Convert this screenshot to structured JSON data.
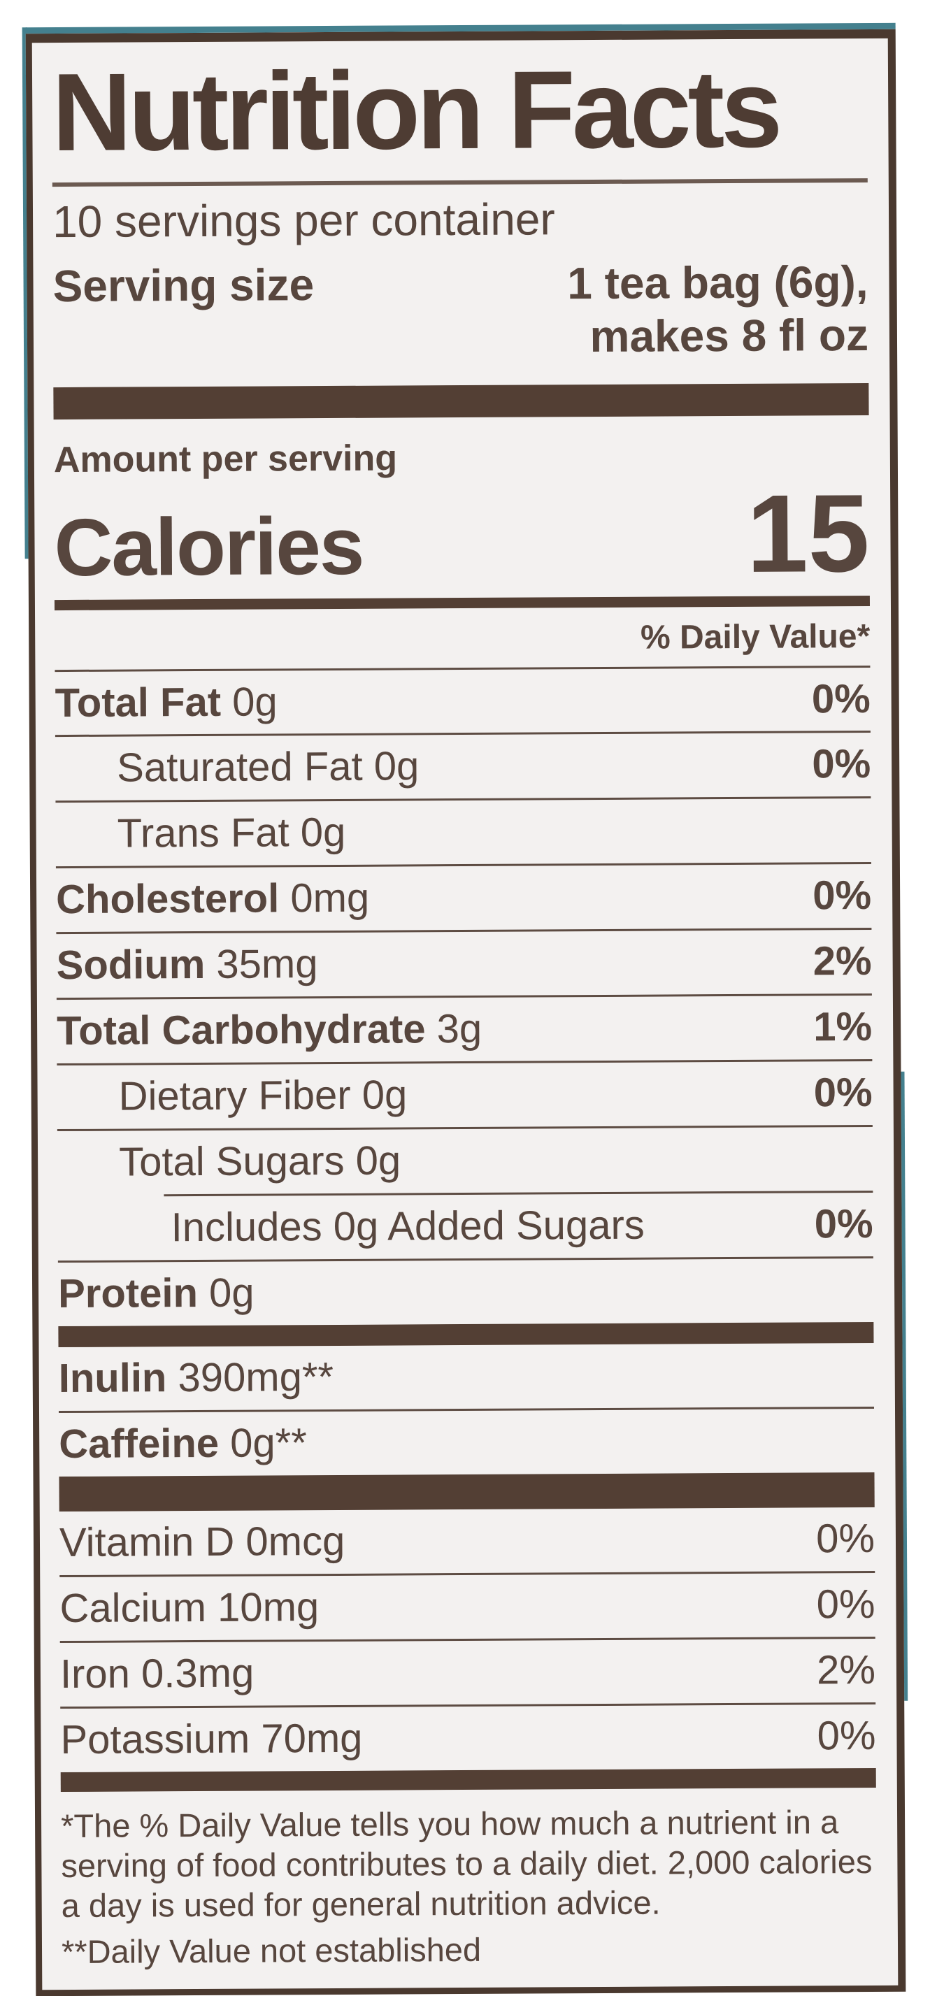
{
  "label": {
    "title": "Nutrition Facts",
    "servings_per_container": "10 servings per container",
    "serving_size_label": "Serving size",
    "serving_size_line1": "1 tea bag (6g),",
    "serving_size_line2": "makes 8 fl oz",
    "amount_per_serving": "Amount per serving",
    "calories_label": "Calories",
    "calories_value": "15",
    "daily_value_header": "% Daily Value*",
    "rows": [
      {
        "bold": "Total Fat",
        "rest": " 0g",
        "pct": "0%"
      },
      {
        "bold": "",
        "rest": "Saturated Fat 0g",
        "pct": "0%"
      },
      {
        "bold": "",
        "rest": "Trans Fat 0g",
        "pct": ""
      },
      {
        "bold": "Cholesterol",
        "rest": " 0mg",
        "pct": "0%"
      },
      {
        "bold": "Sodium",
        "rest": " 35mg",
        "pct": "2%"
      },
      {
        "bold": "Total Carbohydrate",
        "rest": " 3g",
        "pct": "1%"
      },
      {
        "bold": "",
        "rest": "Dietary Fiber 0g",
        "pct": "0%"
      },
      {
        "bold": "",
        "rest": "Total Sugars 0g",
        "pct": ""
      },
      {
        "bold": "",
        "rest": "Includes 0g Added Sugars",
        "pct": "0%"
      },
      {
        "bold": "Protein",
        "rest": " 0g",
        "pct": ""
      },
      {
        "bold": "Inulin",
        "rest": " 390mg**",
        "pct": ""
      },
      {
        "bold": "Caffeine",
        "rest": " 0g**",
        "pct": ""
      },
      {
        "bold": "",
        "rest": "Vitamin D 0mcg",
        "pct": "0%"
      },
      {
        "bold": "",
        "rest": "Calcium 10mg",
        "pct": "0%"
      },
      {
        "bold": "",
        "rest": "Iron 0.3mg",
        "pct": "2%"
      },
      {
        "bold": "",
        "rest": "Potassium 70mg",
        "pct": "0%"
      }
    ],
    "footnote_daily_value": "*The % Daily Value tells you how much a nutrient in a serving of food contributes to a daily diet. 2,000 calories a day is used for general nutrition advice.",
    "footnote_not_established": "**Daily Value not established",
    "colors": {
      "text_brown": "#57463e",
      "bar_brown": "#533f34",
      "border_brown": "#4a392f",
      "label_background": "#f3f1f0",
      "box_edge_teal": "#44808e",
      "page_background": "#ffffff"
    }
  }
}
